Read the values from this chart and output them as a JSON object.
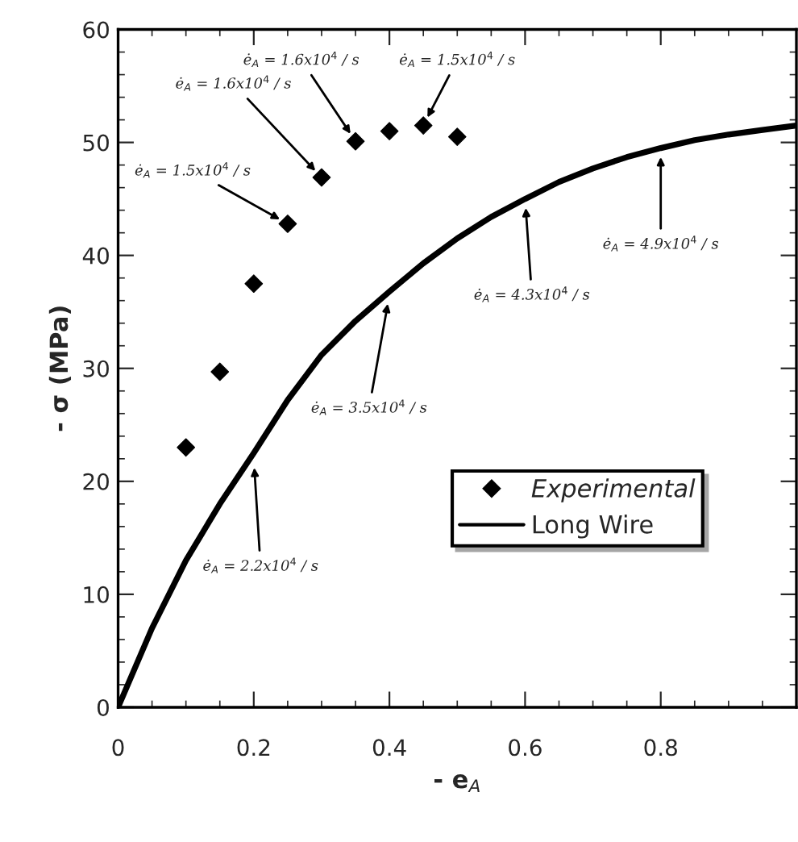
{
  "chart_data": {
    "type": "scatter",
    "xlabel": "- e$_{A}$",
    "ylabel": "- σ (MPa)",
    "xlim": [
      0,
      1.0
    ],
    "ylim": [
      0,
      60
    ],
    "xticks": [
      0,
      0.2,
      0.4,
      0.6,
      0.8
    ],
    "yticks": [
      0,
      10,
      20,
      30,
      40,
      50,
      60
    ],
    "grid": false,
    "legend": "bottom right",
    "series": [
      {
        "name": "Experimental",
        "marker": "diamond",
        "color": "#000000",
        "x": [
          0.1,
          0.15,
          0.2,
          0.25,
          0.3,
          0.35,
          0.4,
          0.45,
          0.5
        ],
        "values": [
          23,
          29.7,
          37.5,
          42.8,
          46.9,
          50.1,
          51.0,
          51.5,
          50.5
        ]
      },
      {
        "name": "Long Wire",
        "type": "line",
        "marker": "none",
        "line_style": "solid",
        "color": "#000000",
        "x": [
          0,
          0.05,
          0.1,
          0.15,
          0.2,
          0.25,
          0.3,
          0.35,
          0.4,
          0.45,
          0.5,
          0.55,
          0.6,
          0.65,
          0.7,
          0.75,
          0.8,
          0.85,
          0.9,
          0.95,
          1.0
        ],
        "values": [
          0,
          7,
          13,
          18,
          22.5,
          27.2,
          31.2,
          34.2,
          36.8,
          39.3,
          41.5,
          43.4,
          45,
          46.5,
          47.7,
          48.7,
          49.5,
          50.2,
          50.7,
          51.1,
          51.5
        ]
      }
    ],
    "annotations": [
      {
        "text": "ė$_{A}$ = 1.5x10$^{4}$ / s",
        "x": 0.25,
        "y": 42.8
      },
      {
        "text": "ė$_{A}$ = 1.6x10$^{4}$ / s",
        "x": 0.3,
        "y": 46.9
      },
      {
        "text": "ė$_{A}$ = 1.6x10$^{4}$ / s",
        "x": 0.35,
        "y": 50.1
      },
      {
        "text": "ė$_{A}$ = 1.5x10$^{4}$ / s",
        "x": 0.45,
        "y": 51.5
      },
      {
        "text": "ė$_{A}$ = 2.2x10$^{4}$ / s",
        "x": 0.2,
        "y": 22
      },
      {
        "text": "ė$_{A}$ = 3.5x10$^{4}$ / s",
        "x": 0.4,
        "y": 36.5
      },
      {
        "text": "ė$_{A}$ = 4.3x10$^{4}$ / s",
        "x": 0.6,
        "y": 45
      },
      {
        "text": "ė$_{A}$ = 4.9x10$^{4}$ / s",
        "x": 0.8,
        "y": 49.5
      }
    ]
  }
}
